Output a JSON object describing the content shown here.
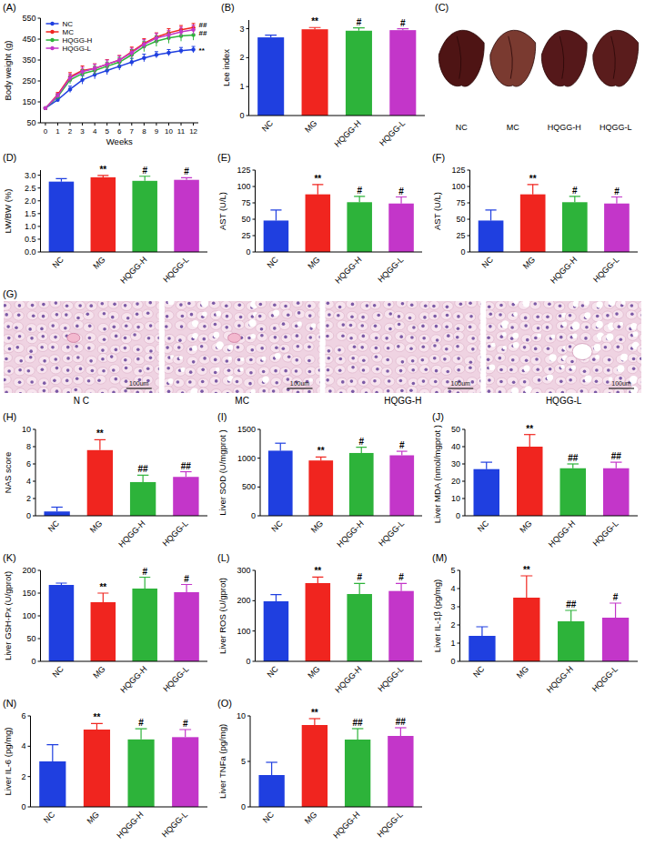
{
  "chart_data": [
    {
      "panel_label": "(A)",
      "type": "line",
      "y_label": "Body weight (g)",
      "x_label": "Weeks",
      "x": [
        0,
        1,
        2,
        3,
        4,
        5,
        6,
        7,
        8,
        9,
        10,
        11,
        12
      ],
      "xlim": [
        -0.4,
        12.4
      ],
      "xticks": [
        0,
        1,
        2,
        3,
        4,
        5,
        6,
        7,
        8,
        9,
        10,
        11,
        12
      ],
      "ylim": [
        50,
        550
      ],
      "yticks": [
        50,
        150,
        250,
        350,
        450,
        550
      ],
      "legend": "upper left",
      "marker": "circle",
      "series": [
        {
          "name": "NC",
          "color": "#1f3fe0",
          "values": [
            120,
            160,
            210,
            255,
            280,
            300,
            320,
            340,
            360,
            375,
            385,
            395,
            400
          ],
          "errors": [
            5,
            8,
            15,
            20,
            20,
            20,
            18,
            18,
            18,
            15,
            15,
            15,
            15
          ]
        },
        {
          "name": "MC",
          "color": "#f0251f",
          "values": [
            120,
            185,
            270,
            300,
            310,
            330,
            350,
            390,
            430,
            460,
            480,
            495,
            505
          ],
          "errors": [
            5,
            10,
            20,
            22,
            22,
            22,
            22,
            22,
            22,
            20,
            20,
            20,
            20
          ]
        },
        {
          "name": "HQGG-H",
          "color": "#2db33a",
          "values": [
            120,
            175,
            255,
            285,
            300,
            320,
            340,
            375,
            415,
            440,
            455,
            465,
            470
          ],
          "errors": [
            5,
            10,
            18,
            20,
            20,
            20,
            22,
            25,
            25,
            25,
            25,
            25,
            25
          ]
        },
        {
          "name": "HQGG-L",
          "color": "#c336c9",
          "values": [
            120,
            180,
            265,
            295,
            310,
            330,
            350,
            385,
            425,
            455,
            470,
            485,
            495
          ],
          "errors": [
            5,
            10,
            18,
            20,
            20,
            20,
            20,
            22,
            22,
            22,
            22,
            22,
            22
          ]
        }
      ],
      "annotations": [
        {
          "text": "##",
          "x": 12,
          "y": 520
        },
        {
          "text": "##",
          "x": 12,
          "y": 480
        },
        {
          "text": "**",
          "x": 12,
          "y": 400
        }
      ]
    },
    {
      "panel_label": "(B)",
      "type": "bar",
      "y_label": "Lee index",
      "categories": [
        "NC",
        "MG",
        "HQGG-H",
        "HQGG-L"
      ],
      "values": [
        2.7,
        2.98,
        2.93,
        2.95
      ],
      "errors": [
        0.08,
        0.06,
        0.1,
        0.05
      ],
      "colors": [
        "#1f3fe0",
        "#f0251f",
        "#2db33a",
        "#c336c9"
      ],
      "ylim": [
        0,
        3.3
      ],
      "yticks": [
        0,
        1,
        2,
        3
      ],
      "annotations": [
        null,
        "**",
        "#",
        "#"
      ]
    },
    {
      "panel_label": "(C)",
      "type": "image",
      "labels": [
        "NC",
        "MC",
        "HQGG-H",
        "HQGG-L"
      ]
    },
    {
      "panel_label": "(D)",
      "type": "bar",
      "y_label": "LW/BW (%)",
      "categories": [
        "NC",
        "MG",
        "HQGG-H",
        "HQGG-L"
      ],
      "values": [
        2.75,
        2.92,
        2.78,
        2.82
      ],
      "errors": [
        0.12,
        0.07,
        0.18,
        0.08
      ],
      "colors": [
        "#1f3fe0",
        "#f0251f",
        "#2db33a",
        "#c336c9"
      ],
      "ylim": [
        0,
        3.2
      ],
      "yticks": [
        {
          "value": 0,
          "label": "0.0"
        },
        0.5,
        {
          "value": 1,
          "label": "1.0"
        },
        1.5,
        {
          "value": 2,
          "label": "2.0"
        },
        2.5,
        {
          "value": 3,
          "label": "3.0"
        }
      ],
      "annotations": [
        null,
        "**",
        "#",
        "#"
      ]
    },
    {
      "panel_label": "(E)",
      "type": "bar",
      "y_label": "AST (U/L)",
      "categories": [
        "NC",
        "MG",
        "HQGG-H",
        "HQGG-L"
      ],
      "values": [
        48,
        88,
        76,
        74
      ],
      "errors": [
        16,
        15,
        9,
        10
      ],
      "colors": [
        "#1f3fe0",
        "#f0251f",
        "#2db33a",
        "#c336c9"
      ],
      "ylim": [
        0,
        125
      ],
      "yticks": [
        0,
        25,
        50,
        75,
        100,
        125
      ],
      "annotations": [
        null,
        "**",
        "#",
        "#"
      ]
    },
    {
      "panel_label": "(F)",
      "type": "bar",
      "y_label": "AST (U/L)",
      "categories": [
        "NC",
        "MG",
        "HQGG-H",
        "HQGG-L"
      ],
      "values": [
        48,
        88,
        76,
        74
      ],
      "errors": [
        16,
        15,
        9,
        10
      ],
      "colors": [
        "#1f3fe0",
        "#f0251f",
        "#2db33a",
        "#c336c9"
      ],
      "ylim": [
        0,
        125
      ],
      "yticks": [
        0,
        25,
        50,
        75,
        100,
        125
      ],
      "annotations": [
        null,
        "**",
        "#",
        "#"
      ]
    },
    {
      "panel_label": "(G)",
      "type": "image",
      "labels": [
        "N C",
        "MC",
        "HQGG-H",
        "HQGG-L"
      ],
      "scale_bar": "100um"
    },
    {
      "panel_label": "(H)",
      "type": "bar",
      "y_label": "NAS score",
      "categories": [
        "NC",
        "MG",
        "HQGG-H",
        "HQGG-L"
      ],
      "values": [
        0.5,
        7.6,
        3.9,
        4.5
      ],
      "errors": [
        0.5,
        1.2,
        0.8,
        0.6
      ],
      "colors": [
        "#1f3fe0",
        "#f0251f",
        "#2db33a",
        "#c336c9"
      ],
      "ylim": [
        0,
        10
      ],
      "yticks": [
        0,
        2,
        4,
        6,
        8,
        10
      ],
      "annotations": [
        null,
        "**",
        "##",
        "##"
      ]
    },
    {
      "panel_label": "(I)",
      "type": "bar",
      "y_label": "Liver SOD (U/mgprot )",
      "categories": [
        "NC",
        "MG",
        "HQGG-H",
        "HQGG-L"
      ],
      "values": [
        1130,
        960,
        1090,
        1050
      ],
      "errors": [
        130,
        60,
        100,
        70
      ],
      "colors": [
        "#1f3fe0",
        "#f0251f",
        "#2db33a",
        "#c336c9"
      ],
      "ylim": [
        0,
        1500
      ],
      "yticks": [
        0,
        500,
        1000,
        1500
      ],
      "annotations": [
        null,
        "**",
        "#",
        "#"
      ]
    },
    {
      "panel_label": "(J)",
      "type": "bar",
      "y_label": "Liver MDA (nmol/mgprot )",
      "categories": [
        "NC",
        "MG",
        "HQGG-H",
        "HQGG-L"
      ],
      "values": [
        27,
        40,
        27.5,
        27.5
      ],
      "errors": [
        4,
        7,
        2.5,
        3.5
      ],
      "colors": [
        "#1f3fe0",
        "#f0251f",
        "#2db33a",
        "#c336c9"
      ],
      "ylim": [
        0,
        50
      ],
      "yticks": [
        0,
        10,
        20,
        30,
        40,
        50
      ],
      "annotations": [
        null,
        "**",
        "##",
        "##"
      ]
    },
    {
      "panel_label": "(K)",
      "type": "bar",
      "y_label": "Liver GSH-Px (U/gprot)",
      "categories": [
        "NC",
        "MG",
        "HQGG-H",
        "HQGG-L"
      ],
      "values": [
        168,
        130,
        160,
        152
      ],
      "errors": [
        4,
        20,
        25,
        17
      ],
      "colors": [
        "#1f3fe0",
        "#f0251f",
        "#2db33a",
        "#c336c9"
      ],
      "ylim": [
        0,
        200
      ],
      "yticks": [
        0,
        50,
        100,
        150,
        200
      ],
      "annotations": [
        null,
        "**",
        "#",
        "#"
      ]
    },
    {
      "panel_label": "(L)",
      "type": "bar",
      "y_label": "Liver ROS (U/gprot)",
      "categories": [
        "NC",
        "MG",
        "HQGG-H",
        "HQGG-L"
      ],
      "values": [
        198,
        258,
        222,
        232
      ],
      "errors": [
        22,
        20,
        35,
        25
      ],
      "colors": [
        "#1f3fe0",
        "#f0251f",
        "#2db33a",
        "#c336c9"
      ],
      "ylim": [
        0,
        300
      ],
      "yticks": [
        0,
        100,
        200,
        300
      ],
      "annotations": [
        null,
        "**",
        "#",
        "#"
      ]
    },
    {
      "panel_label": "(M)",
      "type": "bar",
      "y_label": "Liver IL-1β (pg/mg)",
      "categories": [
        "NC",
        "MG",
        "HQGG-H",
        "HQGG-L"
      ],
      "values": [
        1.4,
        3.5,
        2.2,
        2.4
      ],
      "errors": [
        0.5,
        1.2,
        0.6,
        0.8
      ],
      "colors": [
        "#1f3fe0",
        "#f0251f",
        "#2db33a",
        "#c336c9"
      ],
      "ylim": [
        0,
        5
      ],
      "yticks": [
        0,
        1,
        2,
        3,
        4,
        5
      ],
      "annotations": [
        null,
        "**",
        "##",
        "#"
      ]
    },
    {
      "panel_label": "(N)",
      "type": "bar",
      "y_label": "Liver IL-6 (pg/mg)",
      "categories": [
        "NC",
        "MG",
        "HQGG-H",
        "HQGG-L"
      ],
      "values": [
        3.0,
        5.1,
        4.45,
        4.6
      ],
      "errors": [
        1.1,
        0.4,
        0.7,
        0.5
      ],
      "colors": [
        "#1f3fe0",
        "#f0251f",
        "#2db33a",
        "#c336c9"
      ],
      "ylim": [
        0,
        6
      ],
      "yticks": [
        0,
        2,
        4,
        6
      ],
      "annotations": [
        null,
        "**",
        "#",
        "#"
      ]
    },
    {
      "panel_label": "(O)",
      "type": "bar",
      "y_label": "Liver TNFa (pg/mg)",
      "categories": [
        "NC",
        "MG",
        "HQGG-H",
        "HQGG-L"
      ],
      "values": [
        3.5,
        9.0,
        7.4,
        7.8
      ],
      "errors": [
        1.4,
        0.7,
        1.2,
        0.9
      ],
      "colors": [
        "#1f3fe0",
        "#f0251f",
        "#2db33a",
        "#c336c9"
      ],
      "ylim": [
        0,
        10
      ],
      "yticks": [
        0,
        5,
        10
      ],
      "annotations": [
        null,
        "**",
        "##",
        "##"
      ]
    }
  ]
}
